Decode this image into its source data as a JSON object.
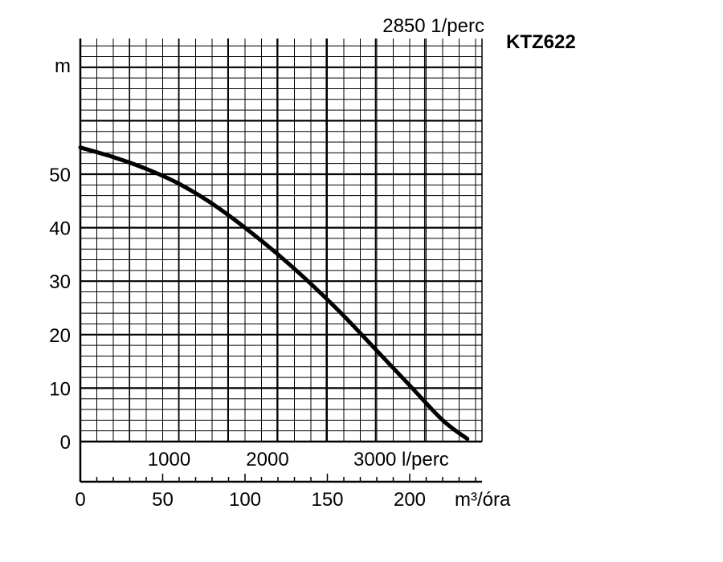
{
  "chart_data": {
    "type": "line",
    "title": "KTZ622",
    "subtitle": "2850 1/perc",
    "ylabel": "m",
    "xlabel": "m³/óra",
    "secondary_xlabel": "l/perc",
    "xlim": [
      0,
      245
    ],
    "ylim": [
      0,
      70
    ],
    "grid": true,
    "y_ticks": [
      {
        "value": 0,
        "label": "0"
      },
      {
        "value": 10,
        "label": "10"
      },
      {
        "value": 20,
        "label": "20"
      },
      {
        "value": 30,
        "label": "30"
      },
      {
        "value": 40,
        "label": "40"
      },
      {
        "value": 50,
        "label": "50"
      }
    ],
    "x_ticks": [
      {
        "value": 0,
        "label": "0"
      },
      {
        "value": 50,
        "label": "50"
      },
      {
        "value": 100,
        "label": "100"
      },
      {
        "value": 150,
        "label": "150"
      },
      {
        "value": 200,
        "label": "200"
      }
    ],
    "secondary_x_ticks": [
      {
        "value": 1000,
        "label": "1000"
      },
      {
        "value": 2000,
        "label": "2000"
      },
      {
        "value": 3000,
        "label": "3000 l/perc"
      }
    ],
    "series": [
      {
        "x": [
          0,
          20,
          40,
          60,
          80,
          100,
          120,
          140,
          160,
          180,
          200,
          220,
          235
        ],
        "y": [
          55,
          53.2,
          51,
          48.2,
          44.5,
          40,
          35,
          29.5,
          23.5,
          17,
          10.5,
          4,
          0.5
        ]
      }
    ]
  }
}
